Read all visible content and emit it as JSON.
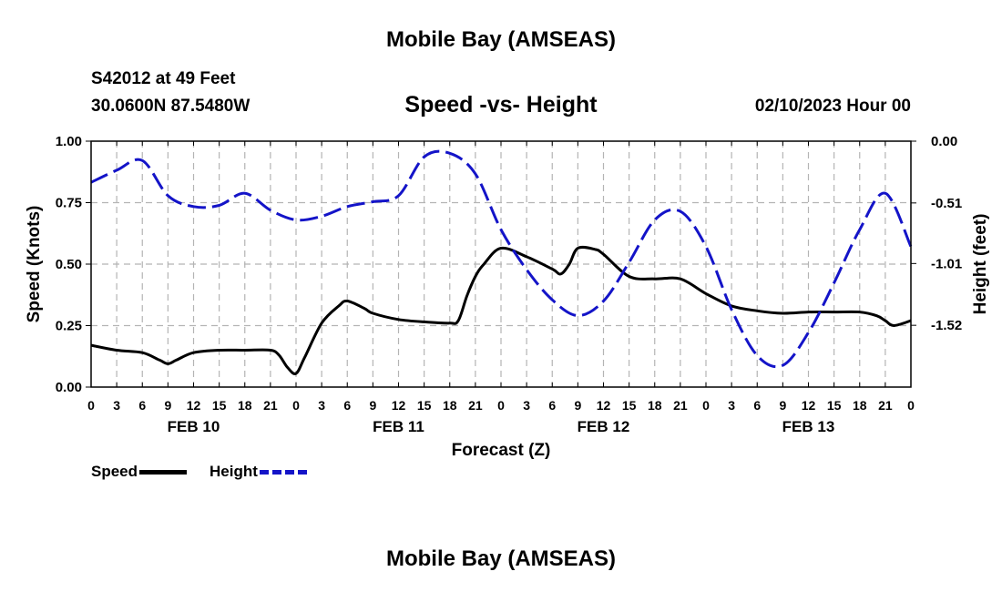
{
  "page_title": "Mobile Bay (AMSEAS)",
  "station": {
    "id_line": "S42012 at 49 Feet",
    "coords_line": "30.0600N  87.5480W"
  },
  "footer_title": "Mobile Bay (AMSEAS)",
  "chart_data": {
    "type": "line",
    "title": "Speed -vs- Height",
    "date_label": "02/10/2023 Hour 00",
    "xlabel": "Forecast (Z)",
    "ylabel_left": "Speed (Knots)",
    "ylabel_right": "Height (feet)",
    "x_range": [
      0,
      96
    ],
    "x_tick_labels": [
      "0",
      "3",
      "6",
      "9",
      "12",
      "15",
      "18",
      "21",
      "0",
      "3",
      "6",
      "9",
      "12",
      "15",
      "18",
      "21",
      "0",
      "3",
      "6",
      "9",
      "12",
      "15",
      "18",
      "21",
      "0",
      "3",
      "6",
      "9",
      "12",
      "15",
      "18",
      "21",
      "0"
    ],
    "day_labels": [
      "FEB 10",
      "FEB 11",
      "FEB 12",
      "FEB 13"
    ],
    "y_left": {
      "range": [
        0,
        1
      ],
      "ticks": [
        0,
        0.25,
        0.5,
        0.75,
        1.0
      ],
      "tick_labels": [
        "0.00",
        "0.25",
        "0.50",
        "0.75",
        "1.00"
      ]
    },
    "y_right": {
      "range": [
        -2.03,
        0
      ],
      "ticks": [
        0,
        -0.51,
        -1.01,
        -1.52
      ],
      "tick_labels": [
        "0.00",
        "-0.51",
        "-1.01",
        "-1.52"
      ]
    },
    "series": [
      {
        "name": "Speed",
        "axis": "left",
        "color": "#000000",
        "style": "solid",
        "x": [
          0,
          3,
          6,
          8,
          9,
          10,
          12,
          15,
          18,
          21,
          22,
          23,
          24,
          25,
          27,
          29,
          30,
          32,
          33,
          36,
          39,
          42,
          43,
          44,
          45,
          46,
          48,
          51,
          54,
          55,
          56,
          57,
          59,
          60,
          63,
          66,
          69,
          72,
          75,
          78,
          81,
          84,
          87,
          90,
          92,
          93,
          94,
          96
        ],
        "values": [
          0.17,
          0.15,
          0.14,
          0.11,
          0.095,
          0.11,
          0.14,
          0.15,
          0.15,
          0.15,
          0.13,
          0.08,
          0.055,
          0.12,
          0.26,
          0.33,
          0.35,
          0.32,
          0.3,
          0.275,
          0.265,
          0.26,
          0.27,
          0.37,
          0.45,
          0.5,
          0.565,
          0.53,
          0.48,
          0.46,
          0.5,
          0.565,
          0.56,
          0.54,
          0.45,
          0.44,
          0.44,
          0.38,
          0.33,
          0.31,
          0.3,
          0.305,
          0.305,
          0.305,
          0.29,
          0.27,
          0.25,
          0.27
        ]
      },
      {
        "name": "Height",
        "axis": "right",
        "color": "#1414c8",
        "style": "dashed",
        "x": [
          0,
          3,
          6,
          9,
          12,
          15,
          18,
          21,
          24,
          27,
          30,
          33,
          36,
          39,
          42,
          45,
          48,
          51,
          54,
          57,
          60,
          63,
          66,
          69,
          72,
          75,
          78,
          81,
          84,
          87,
          90,
          93,
          96
        ],
        "values": [
          -0.34,
          -0.24,
          -0.16,
          -0.45,
          -0.54,
          -0.53,
          -0.43,
          -0.57,
          -0.65,
          -0.62,
          -0.54,
          -0.5,
          -0.45,
          -0.13,
          -0.1,
          -0.27,
          -0.73,
          -1.06,
          -1.31,
          -1.44,
          -1.32,
          -1.0,
          -0.65,
          -0.58,
          -0.87,
          -1.39,
          -1.77,
          -1.85,
          -1.58,
          -1.17,
          -0.73,
          -0.43,
          -0.87
        ]
      }
    ]
  }
}
